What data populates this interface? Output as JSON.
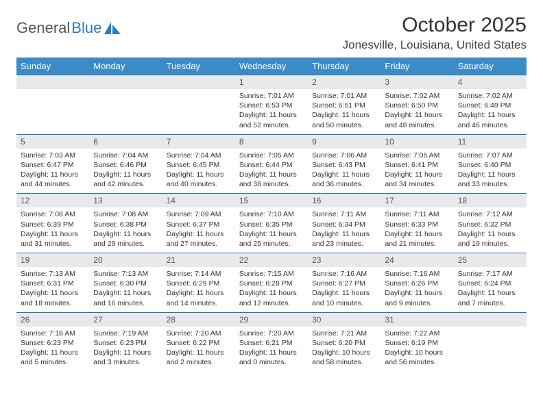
{
  "logo": {
    "text1": "General",
    "text2": "Blue"
  },
  "title": "October 2025",
  "location": "Jonesville, Louisiana, United States",
  "colors": {
    "header_bg": "#3b8bc9",
    "header_text": "#ffffff",
    "daynum_bg": "#e7e9eb",
    "row_border": "#2b6fa8",
    "logo_blue": "#2b7bbf"
  },
  "weekdays": [
    "Sunday",
    "Monday",
    "Tuesday",
    "Wednesday",
    "Thursday",
    "Friday",
    "Saturday"
  ],
  "weeks": [
    [
      null,
      null,
      null,
      {
        "n": "1",
        "sr": "7:01 AM",
        "ss": "6:53 PM",
        "dl": "11 hours and 52 minutes."
      },
      {
        "n": "2",
        "sr": "7:01 AM",
        "ss": "6:51 PM",
        "dl": "11 hours and 50 minutes."
      },
      {
        "n": "3",
        "sr": "7:02 AM",
        "ss": "6:50 PM",
        "dl": "11 hours and 48 minutes."
      },
      {
        "n": "4",
        "sr": "7:02 AM",
        "ss": "6:49 PM",
        "dl": "11 hours and 46 minutes."
      }
    ],
    [
      {
        "n": "5",
        "sr": "7:03 AM",
        "ss": "6:47 PM",
        "dl": "11 hours and 44 minutes."
      },
      {
        "n": "6",
        "sr": "7:04 AM",
        "ss": "6:46 PM",
        "dl": "11 hours and 42 minutes."
      },
      {
        "n": "7",
        "sr": "7:04 AM",
        "ss": "6:45 PM",
        "dl": "11 hours and 40 minutes."
      },
      {
        "n": "8",
        "sr": "7:05 AM",
        "ss": "6:44 PM",
        "dl": "11 hours and 38 minutes."
      },
      {
        "n": "9",
        "sr": "7:06 AM",
        "ss": "6:43 PM",
        "dl": "11 hours and 36 minutes."
      },
      {
        "n": "10",
        "sr": "7:06 AM",
        "ss": "6:41 PM",
        "dl": "11 hours and 34 minutes."
      },
      {
        "n": "11",
        "sr": "7:07 AM",
        "ss": "6:40 PM",
        "dl": "11 hours and 33 minutes."
      }
    ],
    [
      {
        "n": "12",
        "sr": "7:08 AM",
        "ss": "6:39 PM",
        "dl": "11 hours and 31 minutes."
      },
      {
        "n": "13",
        "sr": "7:08 AM",
        "ss": "6:38 PM",
        "dl": "11 hours and 29 minutes."
      },
      {
        "n": "14",
        "sr": "7:09 AM",
        "ss": "6:37 PM",
        "dl": "11 hours and 27 minutes."
      },
      {
        "n": "15",
        "sr": "7:10 AM",
        "ss": "6:35 PM",
        "dl": "11 hours and 25 minutes."
      },
      {
        "n": "16",
        "sr": "7:11 AM",
        "ss": "6:34 PM",
        "dl": "11 hours and 23 minutes."
      },
      {
        "n": "17",
        "sr": "7:11 AM",
        "ss": "6:33 PM",
        "dl": "11 hours and 21 minutes."
      },
      {
        "n": "18",
        "sr": "7:12 AM",
        "ss": "6:32 PM",
        "dl": "11 hours and 19 minutes."
      }
    ],
    [
      {
        "n": "19",
        "sr": "7:13 AM",
        "ss": "6:31 PM",
        "dl": "11 hours and 18 minutes."
      },
      {
        "n": "20",
        "sr": "7:13 AM",
        "ss": "6:30 PM",
        "dl": "11 hours and 16 minutes."
      },
      {
        "n": "21",
        "sr": "7:14 AM",
        "ss": "6:29 PM",
        "dl": "11 hours and 14 minutes."
      },
      {
        "n": "22",
        "sr": "7:15 AM",
        "ss": "6:28 PM",
        "dl": "11 hours and 12 minutes."
      },
      {
        "n": "23",
        "sr": "7:16 AM",
        "ss": "6:27 PM",
        "dl": "11 hours and 10 minutes."
      },
      {
        "n": "24",
        "sr": "7:16 AM",
        "ss": "6:26 PM",
        "dl": "11 hours and 9 minutes."
      },
      {
        "n": "25",
        "sr": "7:17 AM",
        "ss": "6:24 PM",
        "dl": "11 hours and 7 minutes."
      }
    ],
    [
      {
        "n": "26",
        "sr": "7:18 AM",
        "ss": "6:23 PM",
        "dl": "11 hours and 5 minutes."
      },
      {
        "n": "27",
        "sr": "7:19 AM",
        "ss": "6:23 PM",
        "dl": "11 hours and 3 minutes."
      },
      {
        "n": "28",
        "sr": "7:20 AM",
        "ss": "6:22 PM",
        "dl": "11 hours and 2 minutes."
      },
      {
        "n": "29",
        "sr": "7:20 AM",
        "ss": "6:21 PM",
        "dl": "11 hours and 0 minutes."
      },
      {
        "n": "30",
        "sr": "7:21 AM",
        "ss": "6:20 PM",
        "dl": "10 hours and 58 minutes."
      },
      {
        "n": "31",
        "sr": "7:22 AM",
        "ss": "6:19 PM",
        "dl": "10 hours and 56 minutes."
      },
      null
    ]
  ],
  "labels": {
    "sunrise": "Sunrise:",
    "sunset": "Sunset:",
    "daylight": "Daylight:"
  }
}
